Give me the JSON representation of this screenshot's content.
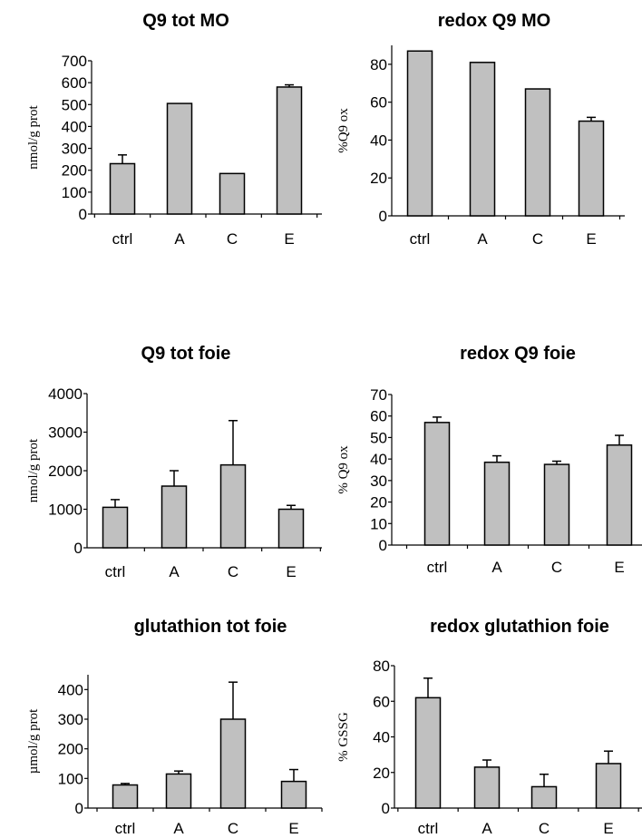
{
  "chart_data": [
    {
      "type": "bar",
      "title": "Q9 tot MO",
      "ylabel": "nmol/g prot",
      "categories": [
        "ctrl",
        "A",
        "C",
        "E"
      ],
      "values": [
        230,
        505,
        185,
        580
      ],
      "errors": [
        40,
        0,
        0,
        10
      ],
      "ylim": [
        0,
        700
      ],
      "yticks": [
        0,
        100,
        200,
        300,
        400,
        500,
        600,
        700
      ]
    },
    {
      "type": "bar",
      "title": "redox Q9 MO",
      "ylabel": "%Q9 ox",
      "categories": [
        "ctrl",
        "A",
        "C",
        "E"
      ],
      "values": [
        87,
        81,
        67,
        50
      ],
      "errors": [
        0,
        0,
        0,
        2
      ],
      "ylim": [
        0,
        90
      ],
      "yticks": [
        0,
        20,
        40,
        60,
        80
      ]
    },
    {
      "type": "bar",
      "title": "Q9 tot foie",
      "ylabel": "nmol/g prot",
      "categories": [
        "ctrl",
        "A",
        "C",
        "E"
      ],
      "values": [
        1050,
        1600,
        2150,
        1000
      ],
      "errors": [
        200,
        400,
        1150,
        100
      ],
      "ylim": [
        0,
        4000
      ],
      "yticks": [
        0,
        1000,
        2000,
        3000,
        4000
      ]
    },
    {
      "type": "bar",
      "title": "redox Q9 foie",
      "ylabel": "% Q9 ox",
      "categories": [
        "ctrl",
        "A",
        "C",
        "E"
      ],
      "values": [
        57,
        38.5,
        37.5,
        46.5
      ],
      "errors": [
        2.5,
        3,
        1.5,
        4.5
      ],
      "ylim": [
        0,
        70
      ],
      "yticks": [
        0,
        10,
        20,
        30,
        40,
        50,
        60,
        70
      ]
    },
    {
      "type": "bar",
      "title": "glutathion tot foie",
      "ylabel": "µmol/g prot",
      "categories": [
        "ctrl",
        "A",
        "C",
        "E"
      ],
      "values": [
        78,
        115,
        300,
        90
      ],
      "errors": [
        5,
        10,
        125,
        40
      ],
      "ylim": [
        0,
        450
      ],
      "yticks": [
        0,
        100,
        200,
        300,
        400
      ]
    },
    {
      "type": "bar",
      "title": "redox glutathion foie",
      "ylabel": "% GSSG",
      "categories": [
        "ctrl",
        "A",
        "C",
        "E"
      ],
      "values": [
        62,
        23,
        12,
        25
      ],
      "errors": [
        11,
        4,
        7,
        7
      ],
      "ylim": [
        0,
        80
      ],
      "yticks": [
        0,
        20,
        40,
        60,
        80
      ]
    }
  ]
}
